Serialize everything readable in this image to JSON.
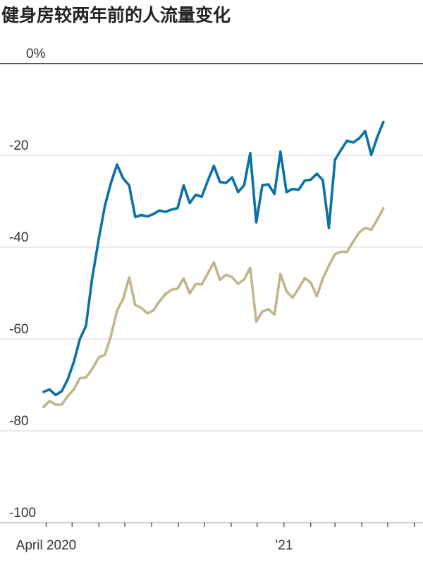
{
  "chart_data": {
    "type": "line",
    "title": "健身房较两年前的人流量变化",
    "xlabel": "",
    "ylabel": "",
    "ylim": [
      -100,
      0
    ],
    "y_ticks": [
      {
        "value": 0,
        "label": "0%"
      },
      {
        "value": -20,
        "label": "-20"
      },
      {
        "value": -40,
        "label": "-40"
      },
      {
        "value": -60,
        "label": "-60"
      },
      {
        "value": -80,
        "label": "-80"
      },
      {
        "value": -100,
        "label": "-100"
      }
    ],
    "x_start": "2020-03-30",
    "x_end": "2021-06-10",
    "x_ticks": [
      "2020-04-01",
      "2020-05-01",
      "2020-06-01",
      "2020-07-01",
      "2020-08-01",
      "2020-09-01",
      "2020-10-01",
      "2020-11-01",
      "2020-12-01",
      "2021-01-01",
      "2021-02-01",
      "2021-03-01",
      "2021-04-01",
      "2021-05-01",
      "2021-06-01"
    ],
    "x_tick_labels": [
      {
        "date": "2020-04-01",
        "label": "April 2020"
      },
      {
        "date": "2021-01-01",
        "label": "’21"
      }
    ],
    "grid": true,
    "series": [
      {
        "color": "#0a72a6",
        "points": [
          [
            "2020-03-29",
            -71.5
          ],
          [
            "2020-04-05",
            -71.0
          ],
          [
            "2020-04-12",
            -72.2
          ],
          [
            "2020-04-19",
            -71.4
          ],
          [
            "2020-04-26",
            -68.8
          ],
          [
            "2020-05-03",
            -65.0
          ],
          [
            "2020-05-10",
            -60.0
          ],
          [
            "2020-05-17",
            -57.2
          ],
          [
            "2020-05-24",
            -47.0
          ],
          [
            "2020-06-01",
            -38.0
          ],
          [
            "2020-06-08",
            -30.9
          ],
          [
            "2020-06-15",
            -26.0
          ],
          [
            "2020-06-22",
            -22.0
          ],
          [
            "2020-06-29",
            -25.0
          ],
          [
            "2020-07-06",
            -26.5
          ],
          [
            "2020-07-13",
            -33.4
          ],
          [
            "2020-07-20",
            -33.0
          ],
          [
            "2020-07-27",
            -33.3
          ],
          [
            "2020-08-03",
            -32.8
          ],
          [
            "2020-08-10",
            -32.0
          ],
          [
            "2020-08-17",
            -32.3
          ],
          [
            "2020-08-24",
            -31.8
          ],
          [
            "2020-08-31",
            -31.5
          ],
          [
            "2020-09-07",
            -26.5
          ],
          [
            "2020-09-14",
            -30.4
          ],
          [
            "2020-09-21",
            -28.6
          ],
          [
            "2020-09-28",
            -29.0
          ],
          [
            "2020-10-05",
            -25.5
          ],
          [
            "2020-10-12",
            -22.3
          ],
          [
            "2020-10-19",
            -25.8
          ],
          [
            "2020-10-26",
            -26.0
          ],
          [
            "2020-11-02",
            -24.8
          ],
          [
            "2020-11-09",
            -28.0
          ],
          [
            "2020-11-16",
            -26.5
          ],
          [
            "2020-11-23",
            -19.5
          ],
          [
            "2020-11-30",
            -34.6
          ],
          [
            "2020-12-07",
            -26.5
          ],
          [
            "2020-12-14",
            -26.3
          ],
          [
            "2020-12-21",
            -28.4
          ],
          [
            "2020-12-28",
            -19.2
          ],
          [
            "2021-01-04",
            -28.0
          ],
          [
            "2021-01-11",
            -27.3
          ],
          [
            "2021-01-18",
            -27.5
          ],
          [
            "2021-01-25",
            -25.5
          ],
          [
            "2021-02-01",
            -25.3
          ],
          [
            "2021-02-08",
            -24.0
          ],
          [
            "2021-02-15",
            -25.4
          ],
          [
            "2021-02-22",
            -35.8
          ],
          [
            "2021-03-01",
            -21.0
          ],
          [
            "2021-03-08",
            -18.8
          ],
          [
            "2021-03-15",
            -16.8
          ],
          [
            "2021-03-22",
            -17.2
          ],
          [
            "2021-03-29",
            -16.3
          ],
          [
            "2021-04-05",
            -14.7
          ],
          [
            "2021-04-12",
            -19.9
          ],
          [
            "2021-04-19",
            -16.0
          ],
          [
            "2021-04-26",
            -12.7
          ]
        ]
      },
      {
        "color": "#bfb78b",
        "points": [
          [
            "2020-03-29",
            -74.8
          ],
          [
            "2020-04-05",
            -73.5
          ],
          [
            "2020-04-12",
            -74.3
          ],
          [
            "2020-04-19",
            -74.3
          ],
          [
            "2020-04-26",
            -72.4
          ],
          [
            "2020-05-03",
            -71.0
          ],
          [
            "2020-05-10",
            -68.5
          ],
          [
            "2020-05-17",
            -68.4
          ],
          [
            "2020-05-24",
            -66.6
          ],
          [
            "2020-06-01",
            -64.0
          ],
          [
            "2020-06-08",
            -63.4
          ],
          [
            "2020-06-15",
            -59.3
          ],
          [
            "2020-06-22",
            -53.8
          ],
          [
            "2020-06-29",
            -51.3
          ],
          [
            "2020-07-06",
            -46.6
          ],
          [
            "2020-07-13",
            -52.6
          ],
          [
            "2020-07-20",
            -53.2
          ],
          [
            "2020-07-27",
            -54.4
          ],
          [
            "2020-08-03",
            -53.8
          ],
          [
            "2020-08-10",
            -51.8
          ],
          [
            "2020-08-17",
            -50.2
          ],
          [
            "2020-08-24",
            -49.3
          ],
          [
            "2020-08-31",
            -49.0
          ],
          [
            "2020-09-07",
            -46.8
          ],
          [
            "2020-09-14",
            -50.1
          ],
          [
            "2020-09-21",
            -48.0
          ],
          [
            "2020-09-28",
            -48.1
          ],
          [
            "2020-10-05",
            -45.7
          ],
          [
            "2020-10-12",
            -43.3
          ],
          [
            "2020-10-19",
            -47.1
          ],
          [
            "2020-10-26",
            -46.0
          ],
          [
            "2020-11-02",
            -46.5
          ],
          [
            "2020-11-09",
            -48.0
          ],
          [
            "2020-11-16",
            -47.0
          ],
          [
            "2020-11-23",
            -44.5
          ],
          [
            "2020-11-30",
            -56.2
          ],
          [
            "2020-12-07",
            -54.0
          ],
          [
            "2020-12-14",
            -53.5
          ],
          [
            "2020-12-21",
            -54.7
          ],
          [
            "2020-12-28",
            -45.8
          ],
          [
            "2021-01-04",
            -49.6
          ],
          [
            "2021-01-11",
            -51.0
          ],
          [
            "2021-01-18",
            -49.0
          ],
          [
            "2021-01-25",
            -46.7
          ],
          [
            "2021-02-01",
            -47.7
          ],
          [
            "2021-02-08",
            -50.7
          ],
          [
            "2021-02-15",
            -46.8
          ],
          [
            "2021-02-22",
            -44.0
          ],
          [
            "2021-03-01",
            -41.5
          ],
          [
            "2021-03-08",
            -41.0
          ],
          [
            "2021-03-15",
            -41.0
          ],
          [
            "2021-03-22",
            -38.8
          ],
          [
            "2021-03-29",
            -36.8
          ],
          [
            "2021-04-05",
            -35.8
          ],
          [
            "2021-04-12",
            -36.2
          ],
          [
            "2021-04-19",
            -34.0
          ],
          [
            "2021-04-26",
            -31.5
          ]
        ]
      }
    ]
  }
}
